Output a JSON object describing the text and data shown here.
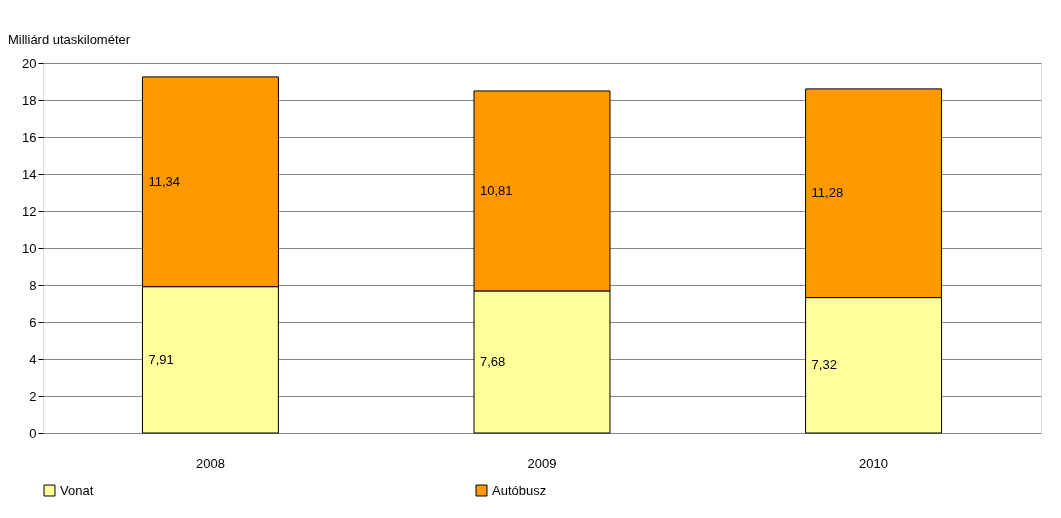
{
  "chart_data": {
    "type": "bar",
    "stacked": true,
    "ylabel": "Milliárd utaskilométer",
    "categories": [
      "2008",
      "2009",
      "2010"
    ],
    "series": [
      {
        "name": "Vonat",
        "color": "#ffff99",
        "values": [
          7.91,
          7.68,
          7.32
        ],
        "value_labels": [
          "7,91",
          "7,68",
          "7,32"
        ]
      },
      {
        "name": "Autóbusz",
        "color": "#ff9900",
        "values": [
          11.34,
          10.81,
          11.28
        ],
        "value_labels": [
          "11,34",
          "10,81",
          "11,28"
        ]
      }
    ],
    "ylim": [
      0,
      20
    ],
    "yticks": [
      0,
      2,
      4,
      6,
      8,
      10,
      12,
      14,
      16,
      18,
      20
    ],
    "grid": "y",
    "legend": "bottom"
  }
}
